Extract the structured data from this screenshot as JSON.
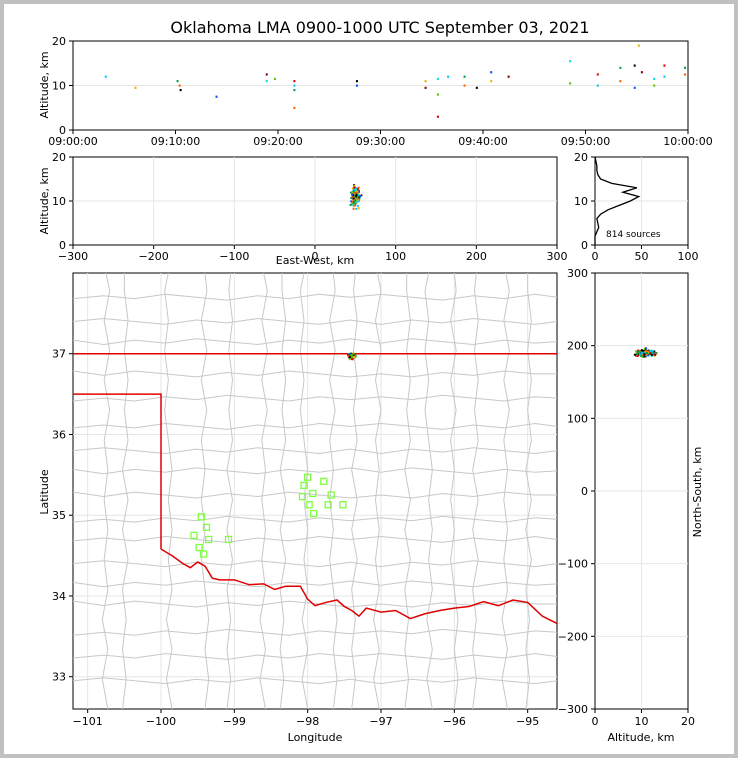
{
  "title": "Oklahoma LMA 0900-1000 UTC September 03, 2021",
  "colors": {
    "frame": "#c0c0c0",
    "state_border": "#e00000",
    "county": "#c8c8c8",
    "station": "#7fff3f",
    "histogram": "#000000"
  },
  "time_panel": {
    "ylabel": "Altitude, km",
    "ylim": [
      0,
      20
    ],
    "yticks": [
      "0",
      "10",
      "20"
    ],
    "xticks": [
      "09:00:00",
      "09:10:00",
      "09:20:00",
      "09:30:00",
      "09:40:00",
      "09:50:00",
      "10:00:00"
    ]
  },
  "ew_panel": {
    "ylabel": "Altitude, km",
    "xlabel": "East-West, km",
    "xlim": [
      -300,
      300
    ],
    "ylim": [
      0,
      20
    ],
    "xticks": [
      "−300",
      "−200",
      "−100",
      "0",
      "100",
      "200",
      "300"
    ],
    "yticks": [
      "0",
      "10",
      "20"
    ]
  },
  "hist_panel": {
    "xlim": [
      0,
      100
    ],
    "ylim": [
      0,
      20
    ],
    "xticks": [
      "0",
      "50",
      "100"
    ],
    "yticks": [
      "0",
      "10",
      "20"
    ],
    "annotation": "814 sources"
  },
  "map_panel": {
    "xlabel": "Longitude",
    "ylabel": "Latitude",
    "xlim": [
      -101.2,
      -94.6
    ],
    "ylim": [
      32.6,
      38.0
    ],
    "xticks": [
      "−101",
      "−100",
      "−99",
      "−98",
      "−97",
      "−96",
      "−95"
    ],
    "yticks": [
      "33",
      "34",
      "35",
      "36",
      "37"
    ]
  },
  "ns_panel": {
    "xlabel": "Altitude, km",
    "ylabel": "North-South, km",
    "xlim": [
      0,
      20
    ],
    "ylim": [
      -300,
      300
    ],
    "xticks": [
      "0",
      "10",
      "20"
    ],
    "yticks": [
      "−300",
      "−200",
      "−100",
      "0",
      "100",
      "200",
      "300"
    ]
  },
  "chart_data": [
    {
      "type": "scatter",
      "description": "Altitude vs time of LMA sources",
      "xlabel": "",
      "ylabel": "Altitude, km",
      "ylim": [
        0,
        20
      ],
      "points_minutes_alt": [
        [
          3.2,
          12
        ],
        [
          10.2,
          11
        ],
        [
          10.4,
          10
        ],
        [
          10.5,
          9
        ],
        [
          14,
          7.5
        ],
        [
          6.1,
          9.5
        ],
        [
          18.9,
          12.5
        ],
        [
          18.9,
          11
        ],
        [
          19.7,
          11.5
        ],
        [
          21.6,
          11
        ],
        [
          21.6,
          10
        ],
        [
          21.6,
          9
        ],
        [
          21.6,
          5
        ],
        [
          27.7,
          11
        ],
        [
          27.7,
          10
        ],
        [
          34.4,
          11
        ],
        [
          34.4,
          9.5
        ],
        [
          35.6,
          11.5
        ],
        [
          35.6,
          8
        ],
        [
          35.6,
          3
        ],
        [
          36.6,
          12
        ],
        [
          38.2,
          12
        ],
        [
          38.2,
          10
        ],
        [
          39.4,
          9.5
        ],
        [
          40.8,
          13
        ],
        [
          40.8,
          11
        ],
        [
          42.5,
          12
        ],
        [
          48.5,
          15.5
        ],
        [
          48.5,
          10.5
        ],
        [
          51.2,
          12.5
        ],
        [
          51.2,
          10
        ],
        [
          53.4,
          14
        ],
        [
          53.4,
          11
        ],
        [
          54.8,
          14.5
        ],
        [
          54.8,
          9.5
        ],
        [
          55.2,
          19
        ],
        [
          55.5,
          13
        ],
        [
          56.7,
          11.5
        ],
        [
          56.7,
          10
        ],
        [
          57.7,
          14.5
        ],
        [
          57.7,
          12
        ],
        [
          59.7,
          14
        ],
        [
          59.7,
          12.5
        ]
      ]
    },
    {
      "type": "scatter",
      "description": "Altitude vs East-West distance",
      "xlim": [
        -300,
        300
      ],
      "ylim": [
        0,
        20
      ],
      "cluster_center_x": 50,
      "cluster_center_alt": 11
    },
    {
      "type": "line",
      "description": "Altitude histogram of sources",
      "xlim": [
        0,
        100
      ],
      "ylim": [
        0,
        20
      ],
      "alt": [
        0,
        2,
        3,
        4,
        5,
        6,
        7,
        8,
        9,
        10,
        11,
        12,
        13,
        14,
        15,
        16,
        17,
        18,
        19,
        20
      ],
      "count": [
        0,
        0,
        2,
        4,
        3,
        2,
        6,
        14,
        26,
        38,
        47,
        30,
        45,
        18,
        6,
        3,
        2,
        2,
        1,
        0
      ]
    },
    {
      "type": "scatter",
      "description": "Station and source locations",
      "stations_lon_lat": [
        [
          -99.45,
          34.98
        ],
        [
          -99.38,
          34.85
        ],
        [
          -99.55,
          34.75
        ],
        [
          -99.35,
          34.7
        ],
        [
          -99.08,
          34.7
        ],
        [
          -99.48,
          34.6
        ],
        [
          -99.42,
          34.52
        ],
        [
          -98.0,
          35.47
        ],
        [
          -98.05,
          35.37
        ],
        [
          -97.93,
          35.27
        ],
        [
          -98.07,
          35.23
        ],
        [
          -97.78,
          35.42
        ],
        [
          -97.68,
          35.25
        ],
        [
          -97.98,
          35.13
        ],
        [
          -97.72,
          35.13
        ],
        [
          -97.52,
          35.13
        ],
        [
          -97.92,
          35.02
        ]
      ],
      "cluster_lon_lat": [
        -97.4,
        36.97
      ]
    },
    {
      "type": "scatter",
      "description": "North-South distance vs altitude",
      "xlim": [
        0,
        20
      ],
      "ylim": [
        -300,
        300
      ],
      "cluster_center_alt": 11,
      "cluster_center_ns": 190
    }
  ]
}
